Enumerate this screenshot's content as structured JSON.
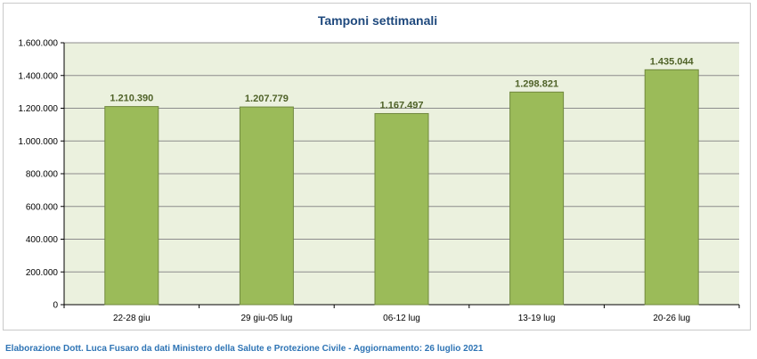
{
  "chart_data": {
    "type": "bar",
    "title": "Tamponi settimanali",
    "categories": [
      "22-28 giu",
      "29 giu-05 lug",
      "06-12 lug",
      "13-19 lug",
      "20-26 lug"
    ],
    "values": [
      1210390,
      1207779,
      1167497,
      1298821,
      1435044
    ],
    "data_labels": [
      "1.210.390",
      "1.207.779",
      "1.167.497",
      "1.298.821",
      "1.435.044"
    ],
    "y_ticks": [
      0,
      200000,
      400000,
      600000,
      800000,
      1000000,
      1200000,
      1400000,
      1600000
    ],
    "y_tick_labels": [
      "0",
      "200.000",
      "400.000",
      "600.000",
      "800.000",
      "1.000.000",
      "1.200.000",
      "1.400.000",
      "1.600.000"
    ],
    "ylim": [
      0,
      1600000
    ],
    "grid": true,
    "legend": "none",
    "colors": {
      "bar_fill": "#9bbb59",
      "bar_stroke": "#71893f",
      "plot_bg": "#ebf1de",
      "grid": "#8c8c8c",
      "title": "#1f497d",
      "data_label": "#4f6228"
    }
  },
  "footer": {
    "text": "Elaborazione Dott. Luca Fusaro da dati Ministero della Salute e Protezione Civile - Aggiornamento: 26 luglio 2021"
  }
}
